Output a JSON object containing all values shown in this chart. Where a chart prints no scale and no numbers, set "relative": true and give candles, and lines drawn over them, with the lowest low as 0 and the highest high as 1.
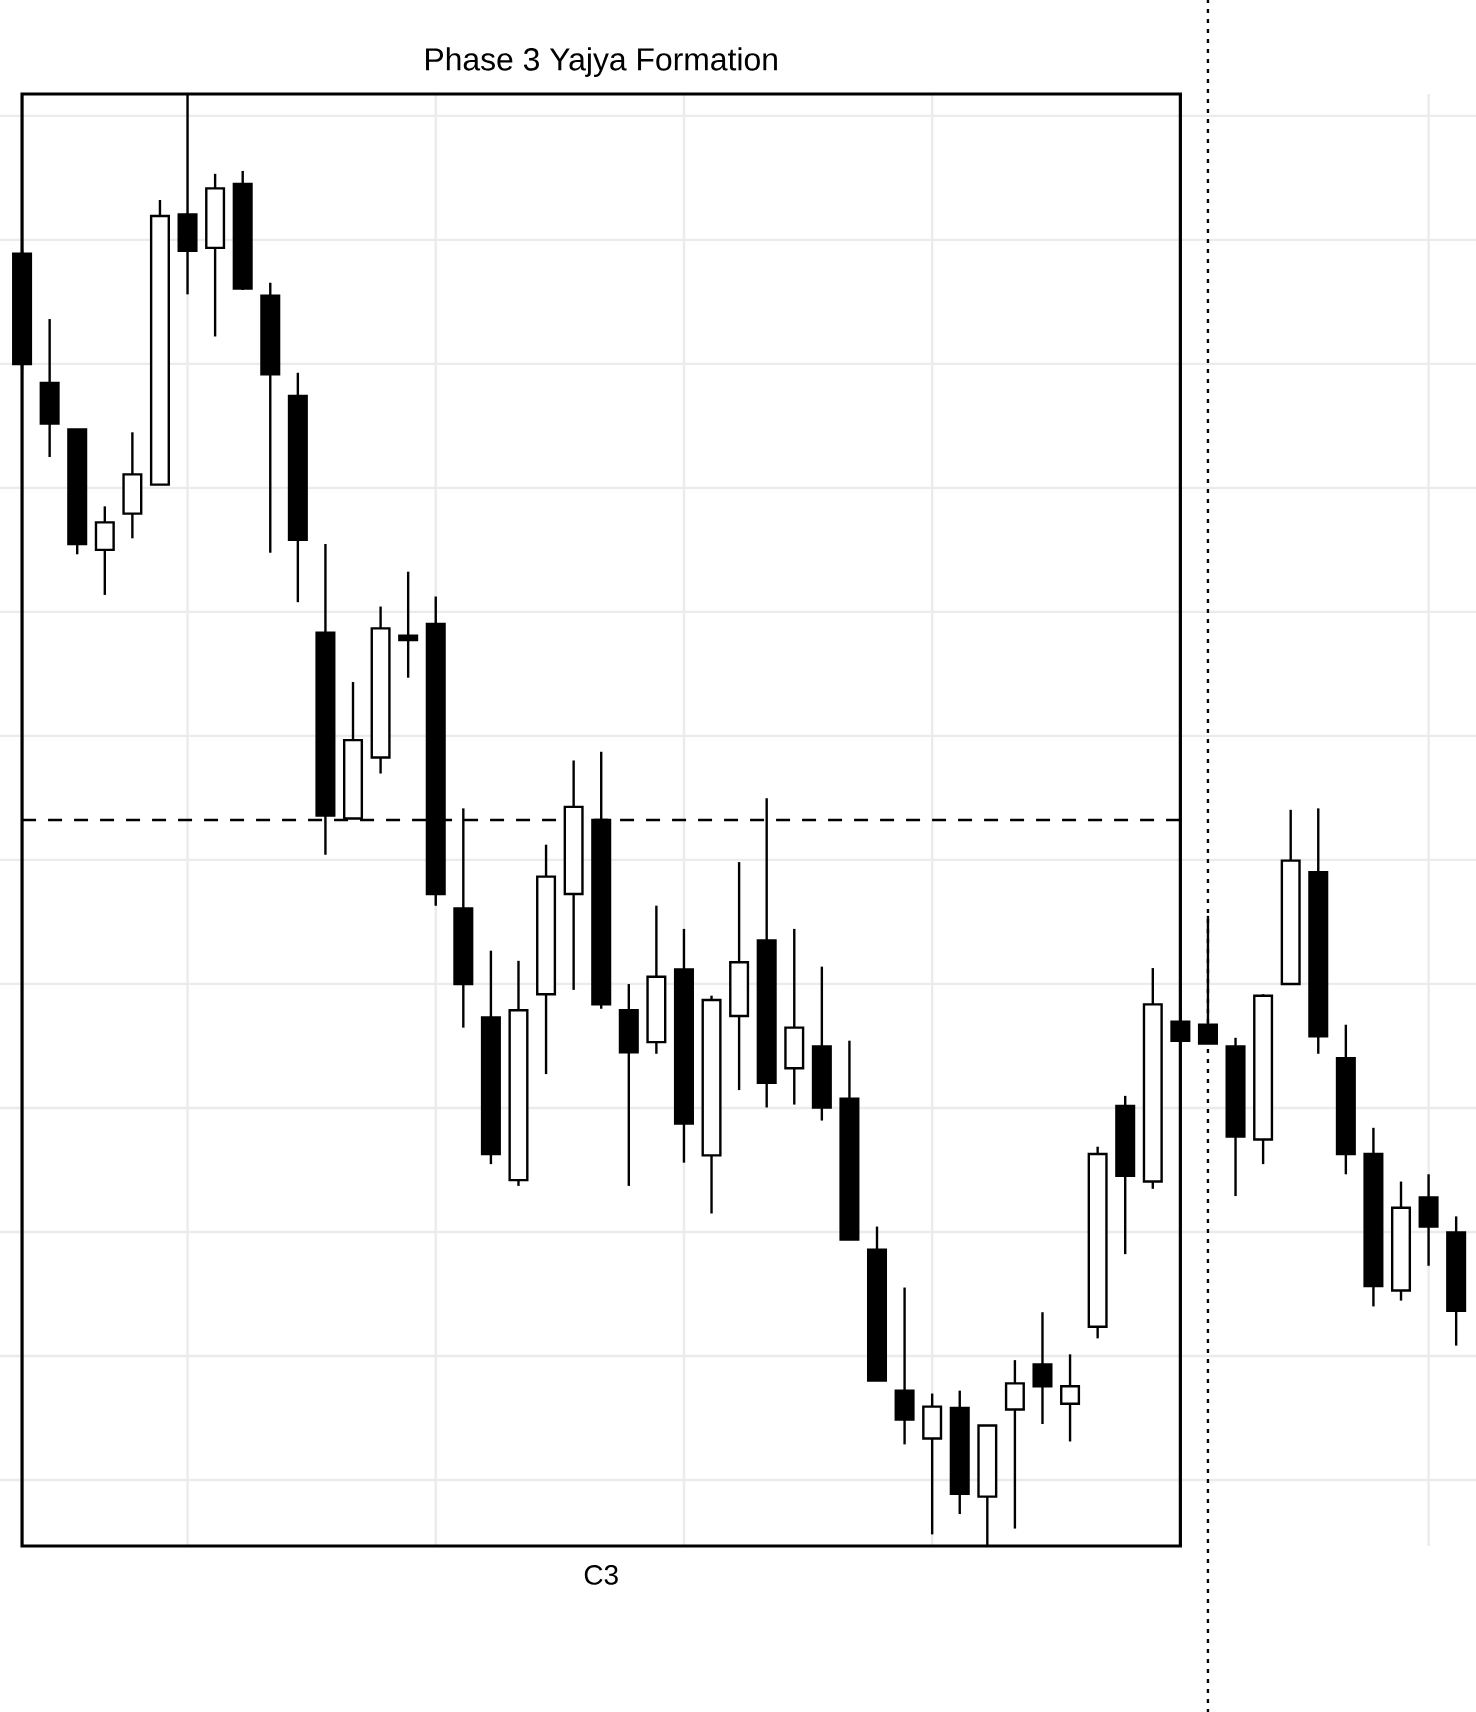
{
  "chart_data": {
    "type": "candlestick",
    "title": "Phase 3 Yajya Formation",
    "relative": true,
    "grid": true,
    "categories": [
      null,
      null,
      null,
      null,
      null,
      null,
      null,
      null,
      null,
      null,
      null,
      null,
      null,
      null,
      null,
      null,
      null,
      null,
      null,
      null,
      null,
      null,
      null,
      null,
      null,
      null,
      null,
      null,
      null,
      null,
      null,
      null,
      null,
      null,
      null,
      null,
      null,
      null,
      null,
      null,
      null,
      null,
      null,
      null,
      null,
      null,
      null,
      null,
      null,
      null,
      null,
      null,
      null
    ],
    "ohlc": [
      [
        0.89,
        0.893,
        0.81,
        0.814
      ],
      [
        0.801,
        0.845,
        0.75,
        0.773
      ],
      [
        0.769,
        0.769,
        0.683,
        0.69
      ],
      [
        0.686,
        0.716,
        0.655,
        0.705
      ],
      [
        0.711,
        0.767,
        0.694,
        0.738
      ],
      [
        0.731,
        0.927,
        0.731,
        0.916
      ],
      [
        0.917,
        1,
        0.862,
        0.892
      ],
      [
        0.894,
        0.945,
        0.833,
        0.935
      ],
      [
        0.938,
        0.947,
        0.865,
        0.866
      ],
      [
        0.861,
        0.87,
        0.684,
        0.807
      ],
      [
        0.792,
        0.808,
        0.65,
        0.693
      ],
      [
        0.629,
        0.69,
        0.476,
        0.503
      ],
      [
        0.501,
        0.595,
        0.501,
        0.555
      ],
      [
        0.543,
        0.647,
        0.532,
        0.632
      ],
      [
        0.627,
        0.671,
        0.598,
        0.624
      ],
      [
        0.635,
        0.654,
        0.441,
        0.449
      ],
      [
        0.439,
        0.508,
        0.357,
        0.387
      ],
      [
        0.364,
        0.41,
        0.263,
        0.27
      ],
      [
        0.252,
        0.403,
        0.248,
        0.369
      ],
      [
        0.38,
        0.483,
        0.325,
        0.461
      ],
      [
        0.449,
        0.541,
        0.383,
        0.509
      ],
      [
        0.5,
        0.547,
        0.37,
        0.373
      ],
      [
        0.369,
        0.387,
        0.248,
        0.34
      ],
      [
        0.347,
        0.441,
        0.339,
        0.392
      ],
      [
        0.397,
        0.425,
        0.264,
        0.291
      ],
      [
        0.269,
        0.379,
        0.229,
        0.376
      ],
      [
        0.365,
        0.471,
        0.314,
        0.402
      ],
      [
        0.417,
        0.515,
        0.302,
        0.319
      ],
      [
        0.329,
        0.425,
        0.304,
        0.357
      ],
      [
        0.344,
        0.399,
        0.293,
        0.302
      ],
      [
        0.308,
        0.348,
        0.211,
        0.211
      ],
      [
        0.204,
        0.22,
        0.114,
        0.114
      ],
      [
        0.107,
        0.178,
        0.07,
        0.087
      ],
      [
        0.074,
        0.105,
        0.008,
        0.096
      ],
      [
        0.095,
        0.107,
        0.022,
        0.036
      ],
      [
        0.034,
        0.083,
        0,
        0.083
      ],
      [
        0.094,
        0.128,
        0.012,
        0.112
      ],
      [
        0.125,
        0.161,
        0.084,
        0.11
      ],
      [
        0.098,
        0.132,
        0.072,
        0.11
      ],
      [
        0.151,
        0.275,
        0.143,
        0.27
      ],
      [
        0.303,
        0.31,
        0.201,
        0.255
      ],
      [
        0.251,
        0.398,
        0.246,
        0.373
      ],
      [
        0.361,
        0.369,
        0.348,
        0.348
      ],
      [
        0.359,
        0.434,
        0.346,
        0.346
      ],
      [
        0.344,
        0.35,
        0.241,
        0.282
      ],
      [
        0.28,
        0.38,
        0.263,
        0.379
      ],
      [
        0.387,
        0.507,
        0.387,
        0.472
      ],
      [
        0.464,
        0.508,
        0.339,
        0.351
      ],
      [
        0.336,
        0.359,
        0.256,
        0.27
      ],
      [
        0.27,
        0.288,
        0.165,
        0.179
      ],
      [
        0.176,
        0.251,
        0.169,
        0.233
      ],
      [
        0.24,
        0.256,
        0.193,
        0.22
      ],
      [
        0.216,
        0.227,
        0.138,
        0.162
      ]
    ],
    "ref_lines": [
      {
        "axis": "y",
        "value": 0.5,
        "line_style": "dashed"
      }
    ],
    "annotations": [
      "C3"
    ]
  }
}
